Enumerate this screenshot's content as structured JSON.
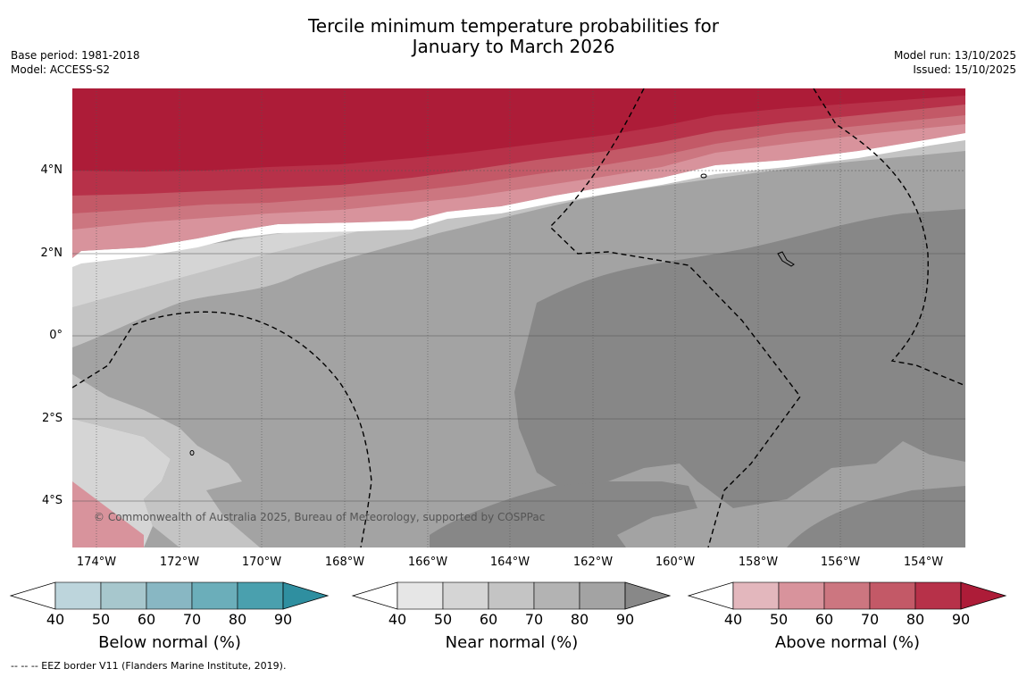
{
  "title": {
    "line1": "Tercile minimum temperature probabilities for",
    "line2": "January to March 2026"
  },
  "meta_left": {
    "base_period": "Base period: 1981-2018",
    "model": "Model: ACCESS-S2"
  },
  "meta_right": {
    "model_run": "Model run: 13/10/2025",
    "issued": "Issued: 15/10/2025"
  },
  "map": {
    "lat_labels": [
      "4°N",
      "2°N",
      "0°",
      "2°S",
      "4°S"
    ],
    "lon_labels": [
      "174°W",
      "172°W",
      "170°W",
      "168°W",
      "166°W",
      "164°W",
      "162°W",
      "160°W",
      "158°W",
      "156°W",
      "154°W"
    ],
    "copyright": "© Commonwealth of Australia 2025, Bureau of Meteorology, supported by COSPPac"
  },
  "colorbars": [
    {
      "label": "Below normal (%)",
      "ticks": [
        "40",
        "50",
        "60",
        "70",
        "80",
        "90"
      ],
      "colors": [
        "#ffffff",
        "#bdd5dc",
        "#a7c7cd",
        "#88b7c3",
        "#6baeba",
        "#4aa0ae",
        "#2f8fa0"
      ]
    },
    {
      "label": "Near normal (%)",
      "ticks": [
        "40",
        "50",
        "60",
        "70",
        "80",
        "90"
      ],
      "colors": [
        "#ffffff",
        "#e6e6e6",
        "#d5d5d5",
        "#c4c4c4",
        "#b3b3b3",
        "#a3a3a3",
        "#888888"
      ]
    },
    {
      "label": "Above normal (%)",
      "ticks": [
        "40",
        "50",
        "60",
        "70",
        "80",
        "90"
      ],
      "colors": [
        "#ffffff",
        "#e3b7bd",
        "#d8939c",
        "#cc7680",
        "#c35967",
        "#b73149",
        "#ad1c38"
      ]
    }
  ],
  "footer": "--  --  -- EEZ border V11 (Flanders Marine Institute, 2019)."
}
